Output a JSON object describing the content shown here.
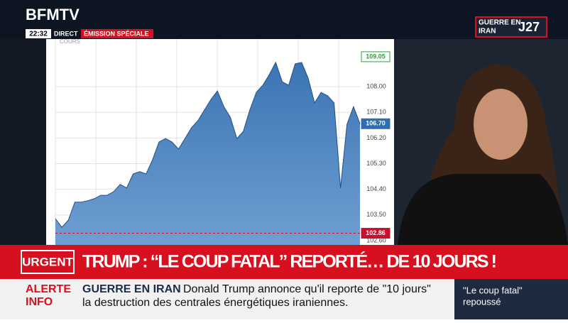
{
  "header": {
    "channel": "BFMTV",
    "time": "22:32",
    "live": "DIRECT",
    "program": "ÉMISSION SPÉCIALE",
    "topic": "GUERRE EN\nIRAN",
    "day": "J27"
  },
  "chart_data": {
    "type": "area",
    "legend": "COURS",
    "color": "#3b74b4",
    "values": [
      103.37,
      103.07,
      103.32,
      103.95,
      103.95,
      104.0,
      104.07,
      104.19,
      104.19,
      104.32,
      104.57,
      104.45,
      104.94,
      105.02,
      104.94,
      105.44,
      106.06,
      106.18,
      106.06,
      105.81,
      106.18,
      106.56,
      106.81,
      107.18,
      107.55,
      107.85,
      107.3,
      106.93,
      106.18,
      106.43,
      107.18,
      107.8,
      108.05,
      108.42,
      108.85,
      108.17,
      108.05,
      108.8,
      108.85,
      108.3,
      107.43,
      107.8,
      107.68,
      107.43,
      104.44,
      106.68,
      107.3,
      106.7
    ],
    "ylim": [
      102.45,
      109.67
    ],
    "yticks": [
      {
        "value": 102.6,
        "label": "102.60"
      },
      {
        "value": 103.5,
        "label": "103.50"
      },
      {
        "value": 104.4,
        "label": "104.40"
      },
      {
        "value": 105.3,
        "label": "105.30"
      },
      {
        "value": 106.2,
        "label": "106.20"
      },
      {
        "value": 107.1,
        "label": "107.10"
      },
      {
        "value": 108.0,
        "label": "108.00"
      }
    ],
    "markers": [
      {
        "value": 109.05,
        "label": "109.05",
        "color": "#2e9e3a"
      },
      {
        "value": 106.7,
        "label": "106.70",
        "color": "#2f6db0"
      },
      {
        "value": 102.86,
        "label": "102.86",
        "color": "#c8102e"
      }
    ],
    "grid": true
  },
  "ticker": {
    "badge": "URGENT",
    "headline": "TRUMP : “LE COUP FATAL” REPORTÉ… DE 10 JOURS !",
    "alert_1": "ALERTE",
    "alert_2": "INFO",
    "topic": "GUERRE EN IRAN",
    "line_1": "Donald Trump annonce qu'il reporte de \"10 jours\"",
    "line_2": "la destruction des centrales énergétiques iraniennes.",
    "promo_1": "\"Le coup fatal\"",
    "promo_2": "repoussé"
  }
}
